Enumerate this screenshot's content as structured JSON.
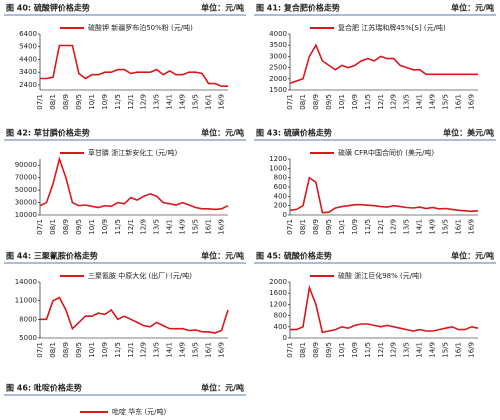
{
  "figures": [
    {
      "caption": "图 40: 硫酸钾价格走势",
      "unit": "单位：元/吨"
    },
    {
      "caption": "图 41: 复合肥价格走势",
      "unit": "单位：元/吨"
    },
    {
      "caption": "图 42: 草甘膦价格走势",
      "unit": "单位：元/吨"
    },
    {
      "caption": "图 43: 硫磺价格走势",
      "unit": "单位：美元/吨"
    },
    {
      "caption": "图 44: 三聚氰胺价格走势",
      "unit": "单位：元/吨"
    },
    {
      "caption": "图 45: 硫酸价格走势",
      "unit": "单位：元/吨"
    },
    {
      "caption": "图 46: 吡啶价格走势",
      "unit": "单位：元/吨"
    }
  ],
  "partial_legend": "吡啶 华东 (元/吨)",
  "chart_data": [
    {
      "type": "line",
      "categories": [
        "07/1",
        null,
        "08/1",
        null,
        "08/9",
        null,
        "09/5",
        null,
        "10/1",
        null,
        "10/9",
        null,
        "11/5",
        null,
        "12/1",
        null,
        "12/9",
        null,
        "13/5",
        null,
        "14/1",
        null,
        "14/9",
        null,
        "15/5",
        null,
        "16/1",
        null,
        "16/9",
        null
      ],
      "series": [
        {
          "name": "硫酸钾 新疆罗布泊50%粉 (元/吨)",
          "color": "#d7191c",
          "values": [
            2900,
            2900,
            3000,
            5500,
            5500,
            5500,
            3300,
            2900,
            3200,
            3200,
            3400,
            3400,
            3600,
            3600,
            3300,
            3400,
            3400,
            3400,
            3600,
            3200,
            3500,
            3200,
            3200,
            3400,
            3400,
            3300,
            2500,
            2500,
            2300,
            2300
          ]
        }
      ],
      "ylim": [
        2000,
        6400
      ],
      "yticks": [
        2400,
        3400,
        4400,
        5400,
        6400
      ]
    },
    {
      "type": "line",
      "categories": [
        "07/1",
        null,
        "08/1",
        null,
        "08/9",
        null,
        "09/5",
        null,
        "10/1",
        null,
        "10/9",
        null,
        "11/5",
        null,
        "12/1",
        null,
        "12/9",
        null,
        "13/5",
        null,
        "14/1",
        null,
        "14/9",
        null,
        "15/5",
        null,
        "16/1",
        null,
        "16/9",
        null
      ],
      "series": [
        {
          "name": "复合肥 江苏瑞和牌45%[S] (元/吨)",
          "color": "#d7191c",
          "values": [
            1800,
            1900,
            2000,
            3000,
            3500,
            2800,
            2600,
            2400,
            2600,
            2500,
            2600,
            2800,
            2900,
            2800,
            3000,
            2900,
            2900,
            2600,
            2500,
            2400,
            2400,
            2200,
            2200,
            2200,
            2200,
            2200,
            2200,
            2200,
            2200,
            2200
          ]
        }
      ],
      "ylim": [
        1500,
        4000
      ],
      "yticks": [
        1500,
        2000,
        2500,
        3000,
        3500,
        4000
      ]
    },
    {
      "type": "line",
      "categories": [
        "07/1",
        null,
        "08/1",
        null,
        "08/9",
        null,
        "09/5",
        null,
        "10/1",
        null,
        "10/9",
        null,
        "11/5",
        null,
        "12/1",
        null,
        "12/9",
        null,
        "13/5",
        null,
        "14/1",
        null,
        "14/9",
        null,
        "15/5",
        null,
        "16/1",
        null,
        "16/9",
        null
      ],
      "series": [
        {
          "name": "草甘膦 浙江新安化工 (元/吨)",
          "color": "#d7191c",
          "values": [
            25000,
            30000,
            60000,
            100000,
            70000,
            30000,
            25000,
            26000,
            24000,
            22000,
            25000,
            24000,
            30000,
            28000,
            38000,
            34000,
            40000,
            44000,
            40000,
            30000,
            28000,
            26000,
            30000,
            26000,
            22000,
            20000,
            20000,
            19000,
            20000,
            25000
          ]
        }
      ],
      "ylim": [
        10000,
        100000
      ],
      "yticks": [
        10000,
        30000,
        50000,
        70000,
        90000
      ]
    },
    {
      "type": "line",
      "categories": [
        "07/1",
        null,
        "08/1",
        null,
        "08/9",
        null,
        "09/5",
        null,
        "10/1",
        null,
        "10/9",
        null,
        "11/5",
        null,
        "12/1",
        null,
        "12/9",
        null,
        "13/5",
        null,
        "14/1",
        null,
        "14/9",
        null,
        "15/5",
        null,
        "16/1",
        null,
        "16/9",
        null
      ],
      "series": [
        {
          "name": "硫磺 CFR中国合同价 (美元/吨)",
          "color": "#d7191c",
          "values": [
            100,
            120,
            200,
            800,
            700,
            50,
            60,
            150,
            180,
            200,
            220,
            220,
            210,
            200,
            180,
            170,
            200,
            180,
            160,
            150,
            170,
            140,
            160,
            130,
            140,
            120,
            100,
            90,
            80,
            90
          ]
        }
      ],
      "ylim": [
        0,
        1200
      ],
      "yticks": [
        0,
        200,
        400,
        600,
        800,
        1000,
        1200
      ]
    },
    {
      "type": "line",
      "categories": [
        "07/1",
        null,
        "08/1",
        null,
        "08/9",
        null,
        "09/5",
        null,
        "10/1",
        null,
        "10/9",
        null,
        "11/5",
        null,
        "12/1",
        null,
        "12/9",
        null,
        "13/5",
        null,
        "14/1",
        null,
        "14/9",
        null,
        "15/5",
        null,
        "16/1",
        null,
        "16/9",
        null
      ],
      "series": [
        {
          "name": "三聚氰胺 中原大化 (出厂) (元/吨)",
          "color": "#d7191c",
          "values": [
            8000,
            8000,
            11000,
            11500,
            9500,
            6500,
            7500,
            8500,
            8500,
            9000,
            8800,
            9500,
            8000,
            8500,
            8000,
            7500,
            7000,
            6800,
            7500,
            7000,
            6500,
            6500,
            6500,
            6200,
            6300,
            6000,
            6000,
            5800,
            6200,
            9500
          ]
        }
      ],
      "ylim": [
        5000,
        14000
      ],
      "yticks": [
        5000,
        8000,
        11000,
        14000
      ]
    },
    {
      "type": "line",
      "categories": [
        "07/1",
        null,
        "08/1",
        null,
        "08/9",
        null,
        "09/5",
        null,
        "10/1",
        null,
        "10/9",
        null,
        "11/5",
        null,
        "12/1",
        null,
        "12/9",
        null,
        "13/5",
        null,
        "14/1",
        null,
        "14/9",
        null,
        "15/5",
        null,
        "16/1",
        null,
        "16/9",
        null
      ],
      "series": [
        {
          "name": "硫酸 浙江巨化98% (元/吨)",
          "color": "#d7191c",
          "values": [
            300,
            300,
            400,
            1800,
            1200,
            200,
            250,
            300,
            400,
            350,
            450,
            500,
            500,
            450,
            400,
            450,
            400,
            350,
            300,
            250,
            300,
            250,
            250,
            300,
            350,
            400,
            300,
            300,
            400,
            350
          ]
        }
      ],
      "ylim": [
        0,
        2000
      ],
      "yticks": [
        0,
        400,
        800,
        1200,
        1600,
        2000
      ]
    }
  ]
}
